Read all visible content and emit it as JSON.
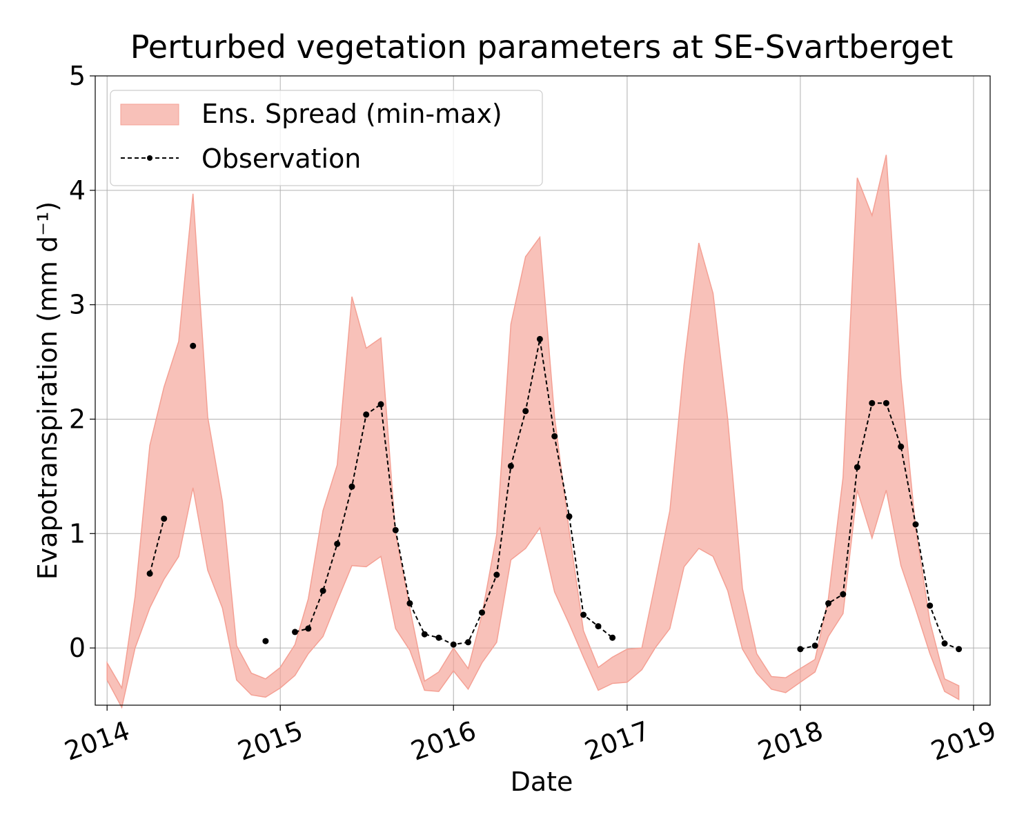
{
  "chart_data": {
    "type": "area",
    "title": "Perturbed vegetation parameters at SE-Svartberget",
    "xlabel": "Date",
    "ylabel": "Evapotranspiration  (mm d⁻¹)",
    "xlim": [
      "2013-12-07",
      "2019-02-05"
    ],
    "ylim": [
      -0.5,
      5
    ],
    "x_ticks": [
      "2014",
      "2015",
      "2016",
      "2017",
      "2018",
      "2019"
    ],
    "y_ticks": [
      "0",
      "1",
      "2",
      "3",
      "4",
      "5"
    ],
    "grid": true,
    "legend": {
      "position": "top-left",
      "entries": [
        "Ens. Spread (min-max)",
        "Observation"
      ]
    },
    "colors": {
      "band": "#f4a094",
      "observation": "#000000"
    },
    "series": [
      {
        "name": "Ens. Spread (min-max)",
        "kind": "band",
        "x": [
          "2014-01-01",
          "2014-02-01",
          "2014-03-01",
          "2014-04-01",
          "2014-05-01",
          "2014-06-01",
          "2014-07-01",
          "2014-08-01",
          "2014-09-01",
          "2014-10-01",
          "2014-11-01",
          "2014-12-01",
          "2015-01-01",
          "2015-02-01",
          "2015-03-01",
          "2015-04-01",
          "2015-05-01",
          "2015-06-01",
          "2015-07-01",
          "2015-08-01",
          "2015-09-01",
          "2015-10-01",
          "2015-11-01",
          "2015-12-01",
          "2016-01-01",
          "2016-02-01",
          "2016-03-01",
          "2016-04-01",
          "2016-05-01",
          "2016-06-01",
          "2016-07-01",
          "2016-08-01",
          "2016-09-01",
          "2016-10-01",
          "2016-11-01",
          "2016-12-01",
          "2017-01-01",
          "2017-02-01",
          "2017-03-01",
          "2017-04-01",
          "2017-05-01",
          "2017-06-01",
          "2017-07-01",
          "2017-08-01",
          "2017-09-01",
          "2017-10-01",
          "2017-11-01",
          "2017-12-01",
          "2018-01-01",
          "2018-02-01",
          "2018-03-01",
          "2018-04-01",
          "2018-05-01",
          "2018-06-01",
          "2018-07-01",
          "2018-08-01",
          "2018-09-01",
          "2018-10-01",
          "2018-11-01",
          "2018-12-01"
        ],
        "upper": [
          -0.13,
          -0.35,
          0.45,
          1.77,
          2.28,
          2.68,
          3.97,
          2.02,
          1.28,
          0.02,
          -0.22,
          -0.27,
          -0.17,
          0.03,
          0.43,
          1.2,
          1.6,
          3.07,
          2.62,
          2.71,
          1.0,
          0.35,
          -0.29,
          -0.21,
          0.0,
          -0.18,
          0.29,
          0.99,
          2.83,
          3.42,
          3.59,
          2.02,
          1.02,
          0.15,
          -0.17,
          -0.08,
          -0.01,
          0.0,
          0.56,
          1.2,
          2.48,
          3.54,
          3.1,
          2.0,
          0.52,
          -0.05,
          -0.25,
          -0.26,
          -0.18,
          -0.1,
          0.43,
          1.49,
          4.11,
          3.78,
          4.31,
          2.36,
          1.05,
          0.23,
          -0.27,
          -0.33
        ],
        "lower": [
          -0.28,
          -0.52,
          0.0,
          0.35,
          0.6,
          0.8,
          1.4,
          0.68,
          0.35,
          -0.28,
          -0.41,
          -0.43,
          -0.35,
          -0.24,
          -0.05,
          0.1,
          0.41,
          0.72,
          0.71,
          0.8,
          0.17,
          -0.02,
          -0.37,
          -0.38,
          -0.2,
          -0.36,
          -0.13,
          0.05,
          0.77,
          0.87,
          1.05,
          0.49,
          0.21,
          -0.08,
          -0.37,
          -0.31,
          -0.3,
          -0.19,
          0.0,
          0.17,
          0.71,
          0.87,
          0.8,
          0.5,
          -0.01,
          -0.22,
          -0.36,
          -0.39,
          -0.3,
          -0.21,
          0.1,
          0.3,
          1.38,
          0.96,
          1.38,
          0.72,
          0.34,
          -0.05,
          -0.38,
          -0.45
        ]
      },
      {
        "name": "Observation",
        "kind": "line-markers",
        "x": [
          "2014-04-01",
          "2014-05-01",
          "2014-06-01",
          "2014-07-01",
          "2014-08-01",
          "2014-09-01",
          "2014-10-01",
          "2014-11-01",
          "2014-12-01",
          "2015-01-01",
          "2015-02-01",
          "2015-03-01",
          "2015-04-01",
          "2015-05-01",
          "2015-06-01",
          "2015-07-01",
          "2015-08-01",
          "2015-09-01",
          "2015-10-01",
          "2015-11-01",
          "2015-12-01",
          "2016-01-01",
          "2016-02-01",
          "2016-03-01",
          "2016-04-01",
          "2016-05-01",
          "2016-06-01",
          "2016-07-01",
          "2016-08-01",
          "2016-09-01",
          "2016-10-01",
          "2016-11-01",
          "2016-12-01",
          "2017-01-01",
          "2017-02-01",
          "2017-03-01",
          "2017-04-01",
          "2017-05-01",
          "2017-06-01",
          "2017-07-01",
          "2017-08-01",
          "2017-09-01",
          "2017-10-01",
          "2017-11-01",
          "2017-12-01",
          "2018-01-01",
          "2018-02-01",
          "2018-03-01",
          "2018-04-01",
          "2018-05-01",
          "2018-06-01",
          "2018-07-01",
          "2018-08-01",
          "2018-09-01",
          "2018-10-01",
          "2018-11-01",
          "2018-12-01"
        ],
        "y": [
          0.65,
          1.13,
          null,
          2.64,
          null,
          null,
          null,
          null,
          0.06,
          null,
          0.14,
          0.17,
          0.5,
          0.91,
          1.41,
          2.04,
          2.13,
          1.03,
          0.39,
          0.12,
          0.09,
          0.03,
          0.05,
          0.31,
          0.64,
          1.59,
          2.07,
          2.7,
          1.85,
          1.15,
          0.29,
          0.19,
          0.09,
          null,
          null,
          null,
          null,
          null,
          null,
          null,
          null,
          null,
          null,
          null,
          null,
          -0.01,
          0.02,
          0.39,
          0.47,
          1.58,
          2.14,
          2.14,
          1.76,
          1.08,
          0.37,
          0.04,
          -0.01
        ]
      }
    ]
  }
}
